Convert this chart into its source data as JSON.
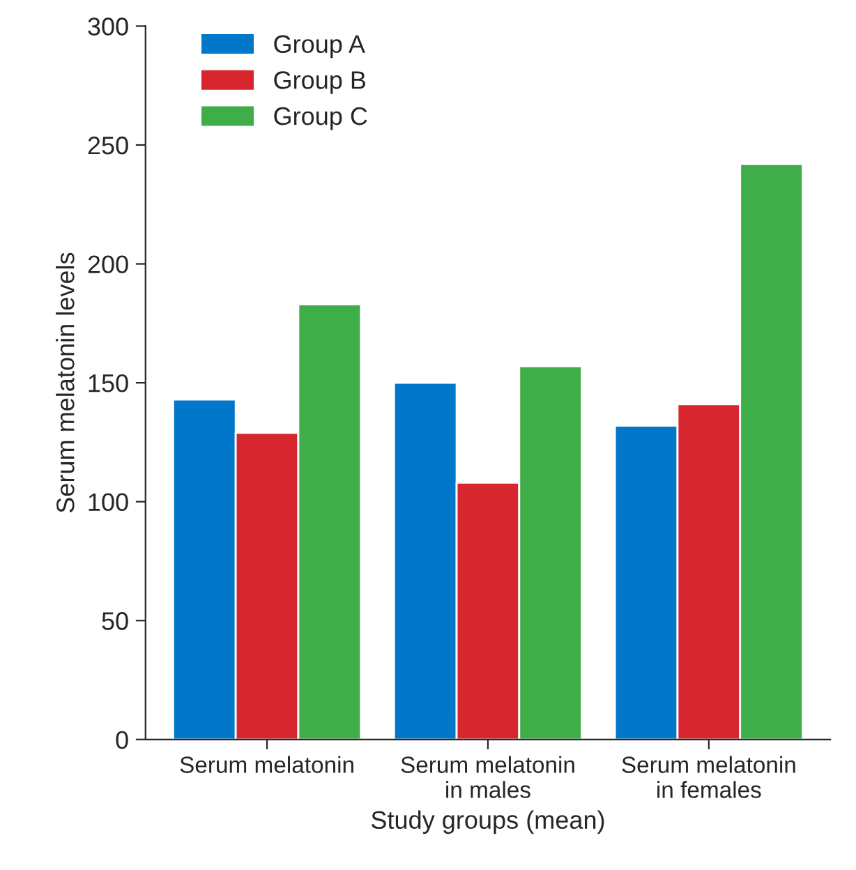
{
  "chart_data": {
    "type": "bar",
    "xlabel": "Study groups (mean)",
    "ylabel": "Serum melatonin levels",
    "categories": [
      "Serum melatonin",
      "Serum melatonin\nin males",
      "Serum melatonin\nin females"
    ],
    "series": [
      {
        "name": "Group A",
        "color": "#0077c8",
        "values": [
          143,
          150,
          132
        ]
      },
      {
        "name": "Group B",
        "color": "#d7262e",
        "values": [
          129,
          108,
          141
        ]
      },
      {
        "name": "Group C",
        "color": "#3fae49",
        "values": [
          183,
          157,
          242
        ]
      }
    ],
    "ylim": [
      0,
      300
    ],
    "yticks": [
      0,
      50,
      100,
      150,
      200,
      250,
      300
    ],
    "grid": false,
    "legend": "top left"
  }
}
